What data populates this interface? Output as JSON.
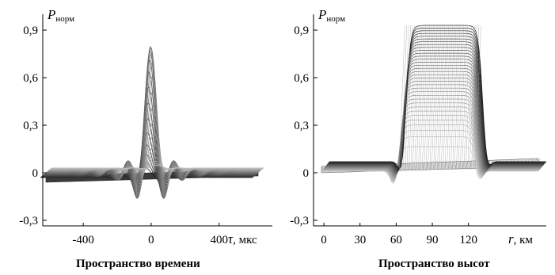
{
  "chart_data": [
    {
      "type": "area",
      "caption": "Пространство времени",
      "ylabel": "P",
      "ylabel_sub": "норм",
      "xlabel_var": "τ",
      "xlabel_unit": ", мкс",
      "y_ticks": [
        "0,9",
        "0,6",
        "0,3",
        "0",
        "-0,3"
      ],
      "y_tick_values": [
        0.9,
        0.6,
        0.3,
        0,
        -0.3
      ],
      "x_ticks": [
        "-400",
        "0",
        "400"
      ],
      "x_tick_values": [
        -400,
        0,
        400
      ],
      "xlim": [
        -620,
        630
      ],
      "ylim": [
        -0.3,
        0.9
      ],
      "peak": 0.8,
      "grid": false
    },
    {
      "type": "area",
      "caption": "Пространство высот",
      "ylabel": "P",
      "ylabel_sub": "норм",
      "xlabel_var": "r",
      "xlabel_unit": ", км",
      "y_ticks": [
        "0,9",
        "0,6",
        "0,3",
        "0",
        "-0,3"
      ],
      "y_tick_values": [
        0.9,
        0.6,
        0.3,
        0,
        -0.3
      ],
      "x_ticks": [
        "0",
        "30",
        "60",
        "90",
        "120"
      ],
      "x_tick_values": [
        0,
        30,
        60,
        90,
        120
      ],
      "xlim": [
        -2,
        178
      ],
      "ylim": [
        -0.3,
        0.9
      ],
      "plateau": 0.86,
      "plateau_range": [
        62,
        125
      ],
      "grid": false
    }
  ]
}
